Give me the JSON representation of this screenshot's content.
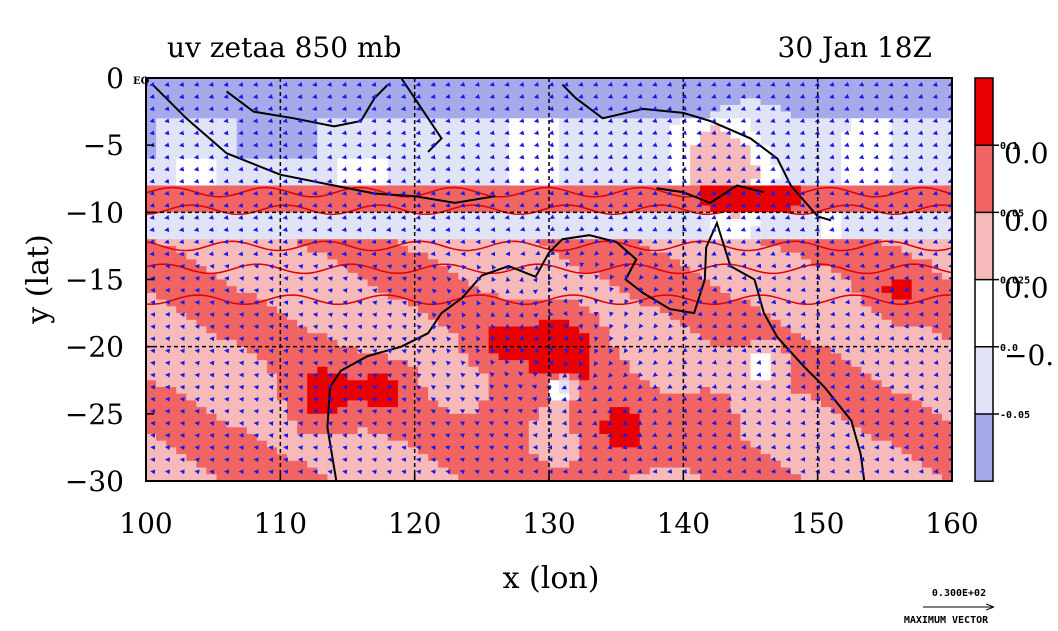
{
  "chart_data": {
    "type": "heatmap",
    "title_left": "uv zetaa 850 mb",
    "title_right": "30 Jan 18Z",
    "xlabel": "x (lon)",
    "ylabel": "y (lat)",
    "xlim": [
      100,
      160
    ],
    "ylim": [
      -30,
      0
    ],
    "x_ticks": [
      100,
      110,
      120,
      130,
      140,
      150,
      160
    ],
    "x_tick_labels": [
      "100",
      "110",
      "120",
      "130",
      "140",
      "150",
      "160"
    ],
    "y_ticks": [
      0,
      -5,
      -10,
      -15,
      -20,
      -25,
      -30
    ],
    "y_tick_labels": [
      "0",
      "−5",
      "−10",
      "−15",
      "−20",
      "−25",
      "−30"
    ],
    "y_top_suffix": "EQ",
    "grid": true,
    "colorbar": {
      "position": "right",
      "bands": [
        {
          "color": "#e80000"
        },
        {
          "color": "#f06464"
        },
        {
          "color": "#f7baba"
        },
        {
          "color": "#ffffff"
        },
        {
          "color": "#e1e3f7"
        },
        {
          "color": "#a6aaea"
        }
      ],
      "small_labels": [
        "0.1",
        "0.05",
        "0.025",
        "0.0",
        "-0.05"
      ],
      "big_labels": [
        "0.0",
        "0.0",
        "0.0",
        "−0."
      ]
    },
    "vector_legend": {
      "value": "0.300E+02",
      "label": "MAXIMUM VECTOR"
    }
  },
  "colors": {
    "strong_positive": "#e80000",
    "positive": "#f06464",
    "weak_positive": "#f7baba",
    "weak_negative": "#e1e3f7",
    "negative": "#a6aaea",
    "vectors": "#1a1ae6",
    "coastline": "#000000",
    "contour": "#e00000"
  }
}
